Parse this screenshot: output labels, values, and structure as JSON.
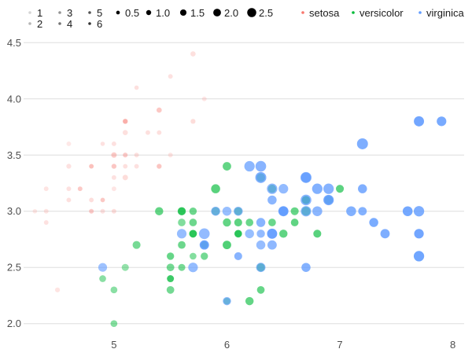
{
  "chart_data": {
    "type": "scatter",
    "title": "",
    "xlabel": "",
    "ylabel": "",
    "xlim": [
      4.2,
      8.1
    ],
    "ylim": [
      1.9,
      4.6
    ],
    "grid": "horizontal",
    "x_ticks": [
      5,
      6,
      7,
      8
    ],
    "y_ticks": [
      2.0,
      2.5,
      3.0,
      3.5,
      4.0,
      4.5
    ],
    "x_tick_labels": [
      "5",
      "6",
      "7",
      "8"
    ],
    "y_tick_labels": [
      "2.0",
      "2.5",
      "3.0",
      "3.5",
      "4.0",
      "4.5"
    ],
    "legends": {
      "alpha": {
        "values": [
          1,
          2,
          3,
          4,
          5,
          6
        ],
        "labels": [
          "1",
          "2",
          "3",
          "4",
          "5",
          "6"
        ]
      },
      "size": {
        "values": [
          0.5,
          1.0,
          1.5,
          2.0,
          2.5
        ],
        "labels": [
          "0.5",
          "1.0",
          "1.5",
          "2.0",
          "2.5"
        ]
      },
      "color": {
        "labels": [
          "setosa",
          "versicolor",
          "virginica"
        ]
      }
    },
    "series": [
      {
        "name": "setosa",
        "color": "#F8766D",
        "points": [
          [
            5.1,
            3.5,
            1.4,
            0.2
          ],
          [
            4.9,
            3.0,
            1.4,
            0.2
          ],
          [
            4.7,
            3.2,
            1.3,
            0.2
          ],
          [
            4.6,
            3.1,
            1.5,
            0.2
          ],
          [
            5.0,
            3.6,
            1.4,
            0.2
          ],
          [
            5.4,
            3.9,
            1.7,
            0.4
          ],
          [
            4.6,
            3.4,
            1.4,
            0.3
          ],
          [
            5.0,
            3.4,
            1.5,
            0.2
          ],
          [
            4.4,
            2.9,
            1.4,
            0.2
          ],
          [
            4.9,
            3.1,
            1.5,
            0.1
          ],
          [
            5.4,
            3.7,
            1.5,
            0.2
          ],
          [
            4.8,
            3.4,
            1.6,
            0.2
          ],
          [
            4.8,
            3.0,
            1.4,
            0.1
          ],
          [
            4.3,
            3.0,
            1.1,
            0.1
          ],
          [
            5.8,
            4.0,
            1.2,
            0.2
          ],
          [
            5.7,
            4.4,
            1.5,
            0.4
          ],
          [
            5.4,
            3.9,
            1.3,
            0.4
          ],
          [
            5.1,
            3.5,
            1.4,
            0.3
          ],
          [
            5.7,
            3.8,
            1.7,
            0.3
          ],
          [
            5.1,
            3.8,
            1.5,
            0.3
          ],
          [
            5.4,
            3.4,
            1.7,
            0.2
          ],
          [
            5.1,
            3.7,
            1.5,
            0.4
          ],
          [
            4.6,
            3.6,
            1.0,
            0.2
          ],
          [
            5.1,
            3.3,
            1.7,
            0.5
          ],
          [
            4.8,
            3.4,
            1.9,
            0.2
          ],
          [
            5.0,
            3.0,
            1.6,
            0.2
          ],
          [
            5.0,
            3.4,
            1.6,
            0.4
          ],
          [
            5.2,
            3.5,
            1.5,
            0.2
          ],
          [
            5.2,
            3.4,
            1.4,
            0.2
          ],
          [
            4.7,
            3.2,
            1.6,
            0.2
          ],
          [
            4.8,
            3.1,
            1.6,
            0.2
          ],
          [
            5.4,
            3.4,
            1.5,
            0.4
          ],
          [
            5.2,
            4.1,
            1.5,
            0.1
          ],
          [
            5.5,
            4.2,
            1.4,
            0.2
          ],
          [
            4.9,
            3.1,
            1.5,
            0.2
          ],
          [
            5.0,
            3.2,
            1.2,
            0.2
          ],
          [
            5.5,
            3.5,
            1.3,
            0.2
          ],
          [
            4.9,
            3.6,
            1.4,
            0.1
          ],
          [
            4.4,
            3.0,
            1.3,
            0.2
          ],
          [
            5.1,
            3.4,
            1.5,
            0.2
          ],
          [
            5.0,
            3.5,
            1.3,
            0.3
          ],
          [
            4.5,
            2.3,
            1.3,
            0.3
          ],
          [
            4.4,
            3.2,
            1.3,
            0.2
          ],
          [
            5.0,
            3.5,
            1.6,
            0.6
          ],
          [
            5.1,
            3.8,
            1.9,
            0.4
          ],
          [
            4.8,
            3.0,
            1.4,
            0.3
          ],
          [
            5.1,
            3.8,
            1.6,
            0.2
          ],
          [
            4.6,
            3.2,
            1.4,
            0.2
          ],
          [
            5.3,
            3.7,
            1.5,
            0.2
          ],
          [
            5.0,
            3.3,
            1.4,
            0.2
          ]
        ]
      },
      {
        "name": "versicolor",
        "color": "#00BA38",
        "points": [
          [
            7.0,
            3.2,
            4.7,
            1.4
          ],
          [
            6.4,
            3.2,
            4.5,
            1.5
          ],
          [
            6.9,
            3.1,
            4.9,
            1.5
          ],
          [
            5.5,
            2.3,
            4.0,
            1.3
          ],
          [
            6.5,
            2.8,
            4.6,
            1.5
          ],
          [
            5.7,
            2.8,
            4.5,
            1.3
          ],
          [
            6.3,
            3.3,
            4.7,
            1.6
          ],
          [
            4.9,
            2.4,
            3.3,
            1.0
          ],
          [
            6.6,
            2.9,
            4.6,
            1.3
          ],
          [
            5.2,
            2.7,
            3.9,
            1.4
          ],
          [
            5.0,
            2.0,
            3.5,
            1.0
          ],
          [
            5.9,
            3.0,
            4.2,
            1.5
          ],
          [
            6.0,
            2.2,
            4.0,
            1.0
          ],
          [
            6.1,
            2.9,
            4.7,
            1.4
          ],
          [
            5.6,
            2.9,
            3.6,
            1.3
          ],
          [
            6.7,
            3.1,
            4.4,
            1.4
          ],
          [
            5.6,
            3.0,
            4.5,
            1.5
          ],
          [
            5.8,
            2.7,
            4.1,
            1.0
          ],
          [
            6.2,
            2.2,
            4.5,
            1.5
          ],
          [
            5.6,
            2.5,
            3.9,
            1.1
          ],
          [
            5.9,
            3.2,
            4.8,
            1.8
          ],
          [
            6.1,
            2.8,
            4.0,
            1.3
          ],
          [
            6.3,
            2.5,
            4.9,
            1.5
          ],
          [
            6.1,
            2.8,
            4.7,
            1.2
          ],
          [
            6.4,
            2.9,
            4.3,
            1.3
          ],
          [
            6.6,
            3.0,
            4.4,
            1.4
          ],
          [
            6.8,
            2.8,
            4.8,
            1.4
          ],
          [
            6.7,
            3.0,
            5.0,
            1.7
          ],
          [
            6.0,
            2.9,
            4.5,
            1.5
          ],
          [
            5.7,
            2.6,
            3.5,
            1.0
          ],
          [
            5.5,
            2.4,
            3.8,
            1.1
          ],
          [
            5.5,
            2.4,
            3.7,
            1.0
          ],
          [
            5.8,
            2.7,
            3.9,
            1.2
          ],
          [
            6.0,
            2.7,
            5.1,
            1.6
          ],
          [
            5.4,
            3.0,
            4.5,
            1.5
          ],
          [
            6.0,
            3.4,
            4.5,
            1.6
          ],
          [
            6.7,
            3.1,
            4.7,
            1.5
          ],
          [
            6.3,
            2.3,
            4.4,
            1.3
          ],
          [
            5.6,
            3.0,
            4.1,
            1.3
          ],
          [
            5.5,
            2.5,
            4.0,
            1.3
          ],
          [
            5.5,
            2.6,
            4.4,
            1.2
          ],
          [
            6.1,
            3.0,
            4.6,
            1.4
          ],
          [
            5.8,
            2.6,
            4.0,
            1.2
          ],
          [
            5.0,
            2.3,
            3.3,
            1.0
          ],
          [
            5.6,
            2.7,
            4.2,
            1.3
          ],
          [
            5.7,
            3.0,
            4.2,
            1.2
          ],
          [
            5.7,
            2.9,
            4.2,
            1.3
          ],
          [
            6.2,
            2.9,
            4.3,
            1.3
          ],
          [
            5.1,
            2.5,
            3.0,
            1.1
          ],
          [
            5.7,
            2.8,
            4.1,
            1.3
          ]
        ]
      },
      {
        "name": "virginica",
        "color": "#619CFF",
        "points": [
          [
            6.3,
            3.3,
            6.0,
            2.5
          ],
          [
            5.8,
            2.7,
            5.1,
            1.9
          ],
          [
            7.1,
            3.0,
            5.9,
            2.1
          ],
          [
            6.3,
            2.9,
            5.6,
            1.8
          ],
          [
            6.5,
            3.0,
            5.8,
            2.2
          ],
          [
            7.6,
            3.0,
            6.6,
            2.1
          ],
          [
            4.9,
            2.5,
            4.5,
            1.7
          ],
          [
            7.3,
            2.9,
            6.3,
            1.8
          ],
          [
            6.7,
            2.5,
            5.8,
            1.8
          ],
          [
            7.2,
            3.6,
            6.1,
            2.5
          ],
          [
            6.5,
            3.2,
            5.1,
            2.0
          ],
          [
            6.4,
            2.7,
            5.3,
            1.9
          ],
          [
            6.8,
            3.0,
            5.5,
            2.1
          ],
          [
            5.7,
            2.5,
            5.0,
            2.0
          ],
          [
            5.8,
            2.8,
            5.1,
            2.4
          ],
          [
            6.4,
            3.2,
            5.3,
            2.3
          ],
          [
            6.5,
            3.0,
            5.5,
            1.8
          ],
          [
            7.7,
            3.8,
            6.7,
            2.2
          ],
          [
            7.7,
            2.6,
            6.9,
            2.3
          ],
          [
            6.0,
            2.2,
            5.0,
            1.5
          ],
          [
            6.9,
            3.2,
            5.7,
            2.3
          ],
          [
            5.6,
            2.8,
            4.9,
            2.0
          ],
          [
            7.7,
            2.8,
            6.7,
            2.0
          ],
          [
            6.3,
            2.7,
            4.9,
            1.8
          ],
          [
            6.7,
            3.3,
            5.7,
            2.1
          ],
          [
            7.2,
            3.2,
            6.0,
            1.8
          ],
          [
            6.2,
            2.8,
            4.8,
            1.8
          ],
          [
            6.1,
            3.0,
            4.9,
            1.8
          ],
          [
            6.4,
            2.8,
            5.6,
            2.1
          ],
          [
            7.2,
            3.0,
            5.8,
            1.6
          ],
          [
            7.4,
            2.8,
            6.1,
            1.9
          ],
          [
            7.9,
            3.8,
            6.4,
            2.0
          ],
          [
            6.4,
            2.8,
            5.6,
            2.2
          ],
          [
            6.3,
            2.8,
            5.1,
            1.5
          ],
          [
            6.1,
            2.6,
            5.6,
            1.4
          ],
          [
            7.7,
            3.0,
            6.1,
            2.3
          ],
          [
            6.3,
            3.4,
            5.6,
            2.4
          ],
          [
            6.4,
            3.1,
            5.5,
            1.8
          ],
          [
            6.0,
            3.0,
            4.8,
            1.8
          ],
          [
            6.9,
            3.1,
            5.4,
            2.1
          ],
          [
            6.7,
            3.1,
            5.6,
            2.4
          ],
          [
            6.9,
            3.1,
            5.1,
            2.3
          ],
          [
            5.8,
            2.7,
            5.1,
            1.9
          ],
          [
            6.8,
            3.2,
            5.9,
            2.3
          ],
          [
            6.7,
            3.3,
            5.7,
            2.5
          ],
          [
            6.7,
            3.0,
            5.2,
            2.3
          ],
          [
            6.3,
            2.5,
            5.0,
            1.9
          ],
          [
            6.5,
            3.0,
            5.2,
            2.0
          ],
          [
            6.2,
            3.4,
            5.4,
            2.3
          ],
          [
            5.9,
            3.0,
            5.1,
            1.8
          ]
        ]
      }
    ],
    "point_fields": [
      "sepal_length (x)",
      "sepal_width (y)",
      "petal_length (alpha)",
      "petal_width (size)"
    ]
  }
}
